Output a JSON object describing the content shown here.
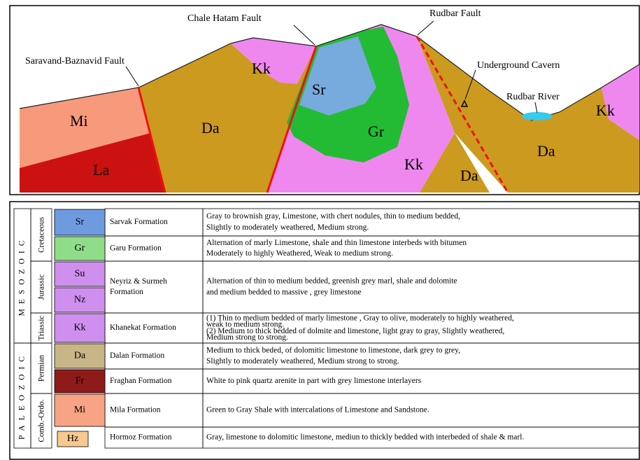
{
  "section": {
    "labels": [
      "Mi",
      "La",
      "Da",
      "Kk",
      "Sr",
      "Gr",
      "Kk",
      "Da",
      "Da",
      "Kk"
    ],
    "faults": [
      "Saravand-Baznavid Fault",
      "Chale Hatam Fault",
      "Rudbar Fault"
    ],
    "features": [
      "Underground Cavern",
      "Rudbar River"
    ]
  },
  "legend": {
    "eras": [
      "MESOZOIC",
      "PALEOZOIC"
    ],
    "periods": [
      "Cretaceous",
      "Jurassic",
      "Triassic",
      "Permian",
      "Comb.-Ordo."
    ],
    "units": [
      {
        "codes": [
          "Sr"
        ],
        "name": [
          "Sarvak Formation"
        ],
        "description": [
          "Gray to brownish gray, Limestone, with chert nodules, thin to medium bedded,",
          "Slightly to moderately weathered, Medium strong."
        ]
      },
      {
        "codes": [
          "Gr"
        ],
        "name": [
          "Garu Formation"
        ],
        "description": [
          "Alternation of marly Limestone, shale and thin limestone interbeds with bitumen",
          "Moderately to highly Weathered, Weak to medium strong."
        ]
      },
      {
        "codes": [
          "Su",
          "Nz"
        ],
        "name": [
          "Neyriz & Surmeh",
          "Formation"
        ],
        "description": [
          "Alternation of thin to medium bedded, greenish grey marl, shale and dolomite",
          "and medium bedded to massive , grey limestone"
        ]
      },
      {
        "codes": [
          "Kk"
        ],
        "name": [
          "Khanekat Formation"
        ],
        "description": [
          "(1) Thin to medium bedded of marly limestone , Gray to olive, moderately to highly weathered,",
          "weak to medium strong.",
          "(2) Medium to thick bedded of dolmite and limestone, light gray to gray, Slightly weathered,",
          "Medium strong to strong."
        ]
      },
      {
        "codes": [
          "Da"
        ],
        "name": [
          "Dalan Formation"
        ],
        "description": [
          "Medium to thick beded, of dolomitic limestone to limestone, dark grey to grey,",
          "Slightly to moderately weathered, Medium strong to strong."
        ]
      },
      {
        "codes": [
          "Fr"
        ],
        "name": [
          "Fraghan Formation"
        ],
        "description": [
          "White to pink quartz arenite in part with grey limestone interlayers"
        ]
      },
      {
        "codes": [
          "Mi"
        ],
        "name": [
          "Mila Formation"
        ],
        "description": [
          "Green to Gray Shale with intercalations of Limestone and Sandstone."
        ]
      },
      {
        "codes": [
          "Hz"
        ],
        "name": [
          "Hormoz Formation"
        ],
        "description": [
          "Gray, limestone to dolomitic limestone, mediun to thickly bedded with interbeded of shale & marl."
        ]
      }
    ]
  }
}
